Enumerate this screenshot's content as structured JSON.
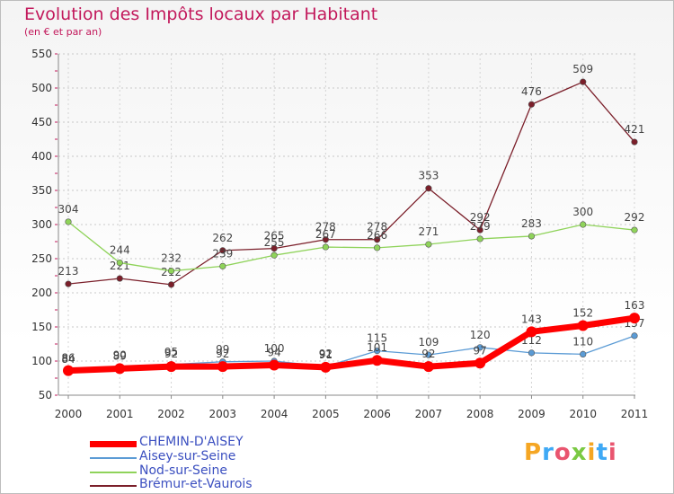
{
  "title": "Evolution des Impôts locaux par Habitant",
  "subtitle": "(en € et par an)",
  "brand": "Proxiti",
  "chart_data": {
    "type": "line",
    "title": "Evolution des Impôts locaux par Habitant",
    "ylabel": "(en € et par an)",
    "xlabel": "",
    "ylim": [
      50,
      550
    ],
    "yticks": [
      50,
      100,
      150,
      200,
      250,
      300,
      350,
      400,
      450,
      500,
      550
    ],
    "categories": [
      "2000",
      "2001",
      "2002",
      "2003",
      "2004",
      "2005",
      "2006",
      "2007",
      "2008",
      "2009",
      "2010",
      "2011"
    ],
    "series": [
      {
        "name": "Brémur-et-Vaurois",
        "color": "#7b1f2a",
        "values": [
          213,
          221,
          212,
          262,
          265,
          278,
          278,
          353,
          292,
          476,
          509,
          421
        ]
      },
      {
        "name": "Nod-sur-Seine",
        "color": "#8fd35a",
        "values": [
          304,
          244,
          232,
          239,
          255,
          267,
          266,
          271,
          279,
          283,
          300,
          292
        ]
      },
      {
        "name": "Aisey-sur-Seine",
        "color": "#5b9bd5",
        "values": [
          84,
          90,
          95,
          99,
          100,
          92,
          115,
          109,
          120,
          112,
          110,
          137
        ]
      },
      {
        "name": "CHEMIN-D'AISEY",
        "color": "#ff0000",
        "values": [
          86,
          89,
          92,
          92,
          94,
          91,
          101,
          92,
          97,
          143,
          152,
          163
        ]
      }
    ],
    "legend": [
      "CHEMIN-D'AISEY",
      "Aisey-sur-Seine",
      "Nod-sur-Seine",
      "Brémur-et-Vaurois"
    ]
  }
}
